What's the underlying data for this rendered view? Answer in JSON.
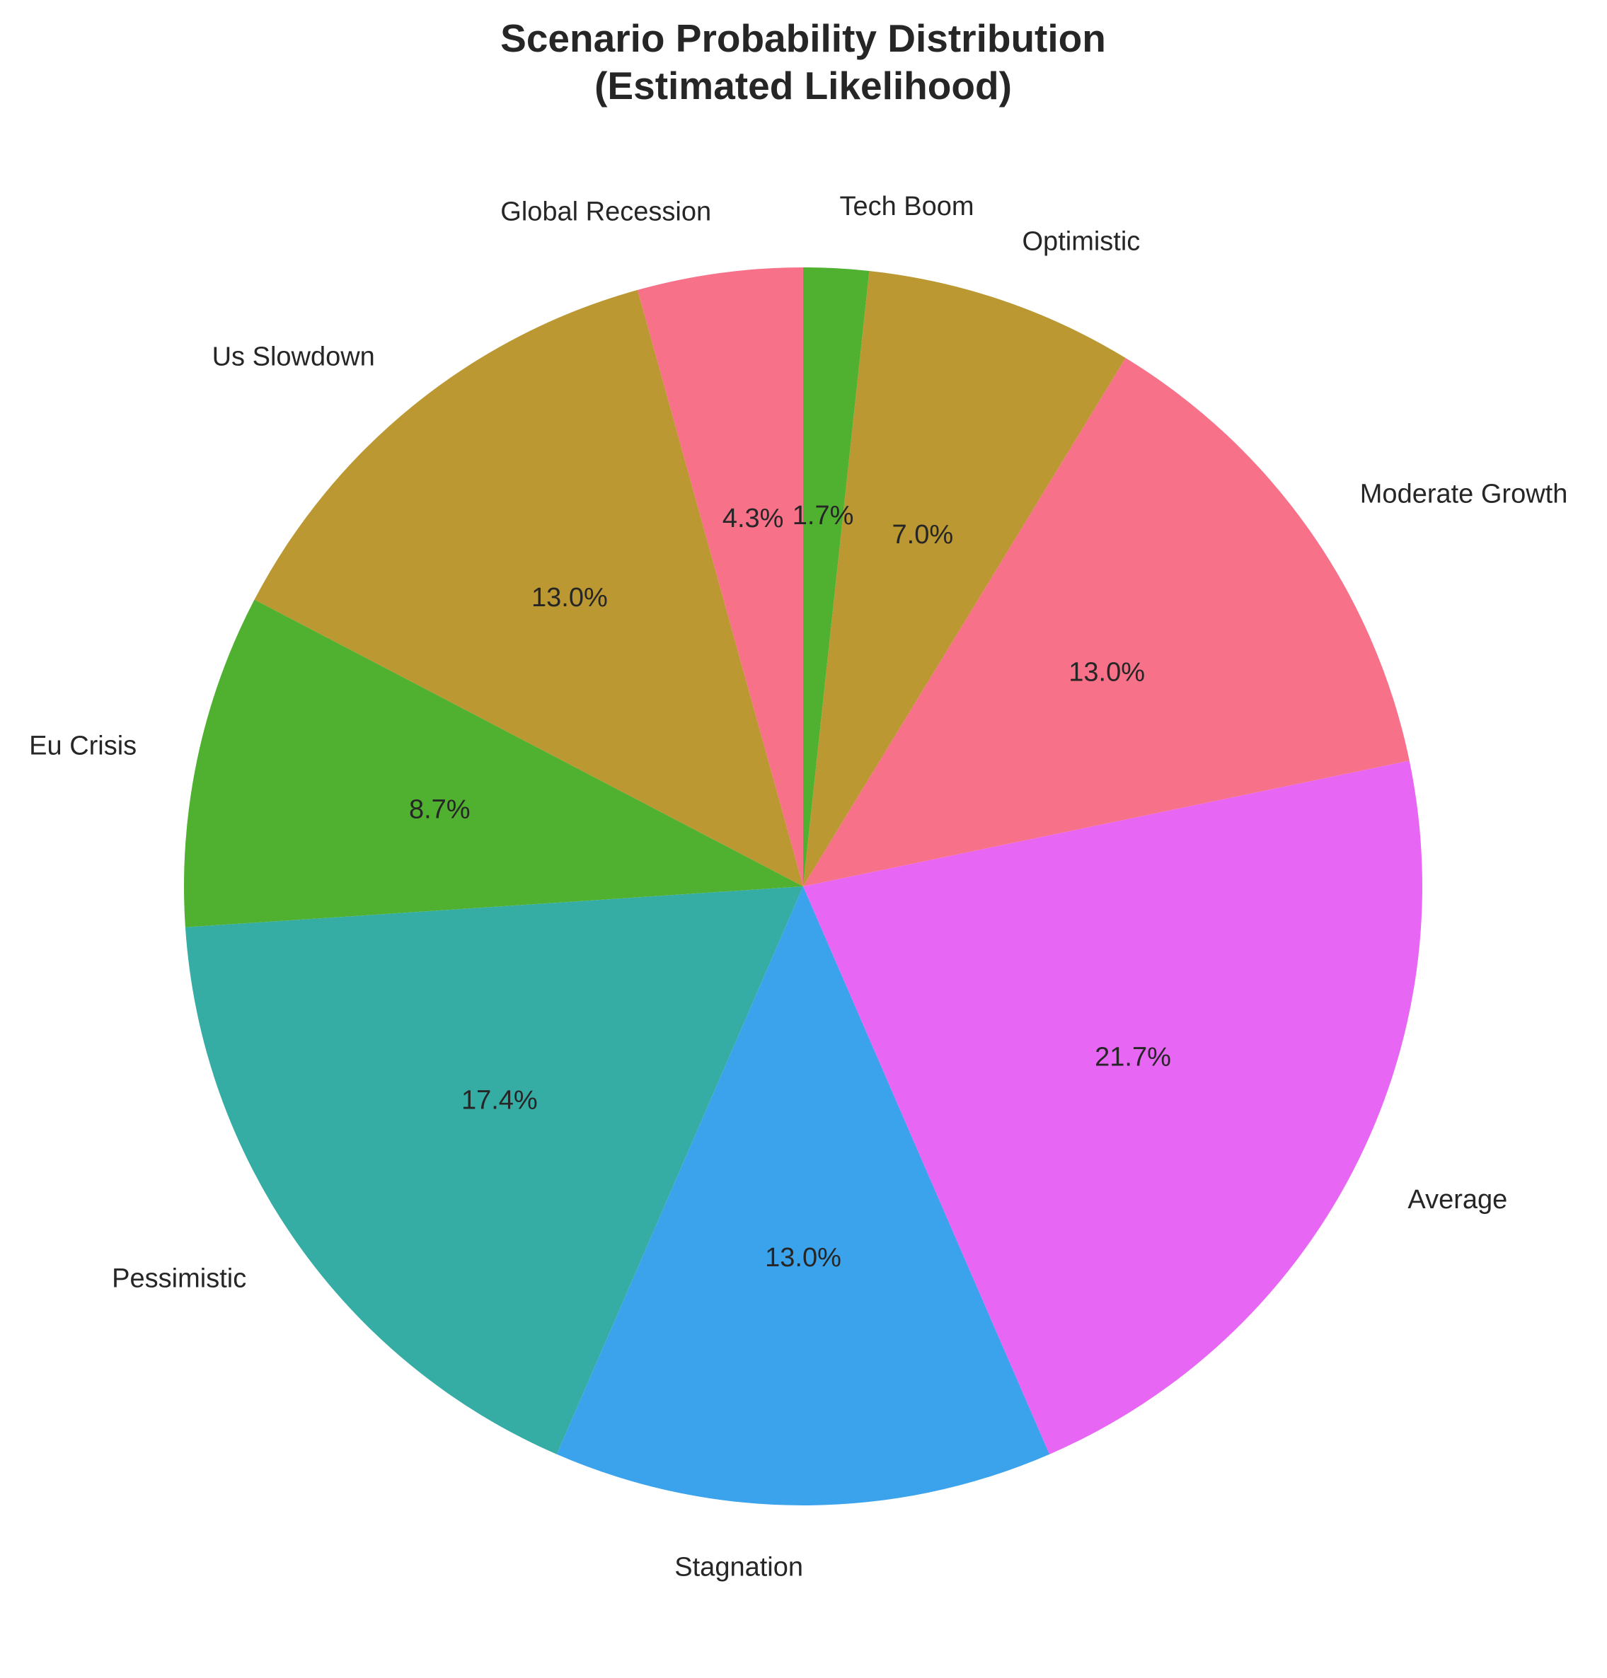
{
  "chart_data": {
    "type": "pie",
    "title_lines": [
      "Scenario Probability Distribution",
      "(Estimated Likelihood)"
    ],
    "start_angle_deg": 90,
    "direction": "counterclockwise",
    "slices": [
      {
        "label": "Global Recession",
        "value": 4.3,
        "pct_text": "4.3%",
        "color": "#f77189"
      },
      {
        "label": "Us Slowdown",
        "value": 13.0,
        "pct_text": "13.0%",
        "color": "#bb9832"
      },
      {
        "label": "Eu Crisis",
        "value": 8.7,
        "pct_text": "8.7%",
        "color": "#50b131"
      },
      {
        "label": "Pessimistic",
        "value": 17.4,
        "pct_text": "17.4%",
        "color": "#36ada4"
      },
      {
        "label": "Stagnation",
        "value": 13.0,
        "pct_text": "13.0%",
        "color": "#3ba3ec"
      },
      {
        "label": "Average",
        "value": 21.7,
        "pct_text": "21.7%",
        "color": "#e866f4"
      },
      {
        "label": "Moderate Growth",
        "value": 13.0,
        "pct_text": "13.0%",
        "color": "#f77189"
      },
      {
        "label": "Optimistic",
        "value": 7.0,
        "pct_text": "7.0%",
        "color": "#bb9832"
      },
      {
        "label": "Tech Boom",
        "value": 1.7,
        "pct_text": "1.7%",
        "color": "#50b131"
      }
    ]
  }
}
